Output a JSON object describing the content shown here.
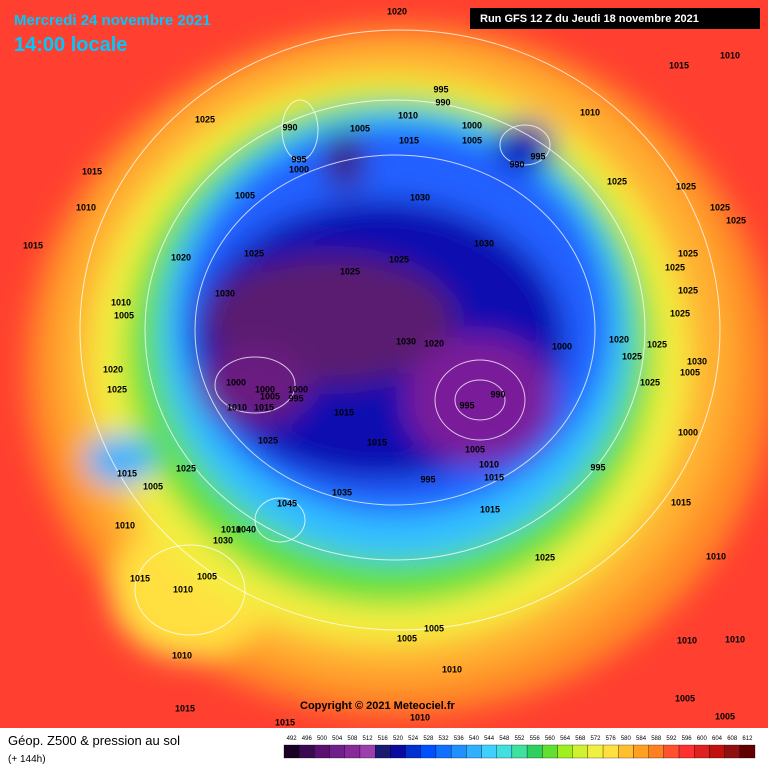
{
  "header": {
    "date": "Mercredi 24 novembre 2021",
    "time": "14:00 locale",
    "run": "Run GFS 12 Z du Jeudi 18 novembre 2021"
  },
  "copyright": "Copyright © 2021 Meteociel.fr",
  "footer": {
    "title": "Géop. Z500 & pression au sol",
    "lead": "(+ 144h)"
  },
  "scale": {
    "values": [
      492,
      496,
      500,
      504,
      508,
      512,
      516,
      520,
      524,
      528,
      532,
      536,
      540,
      544,
      548,
      552,
      556,
      560,
      564,
      568,
      572,
      576,
      580,
      584,
      588,
      592,
      596,
      600,
      604,
      608,
      612
    ],
    "colors": [
      "#1a0025",
      "#3a0a50",
      "#5a1070",
      "#70208a",
      "#8a2a9a",
      "#9b3fae",
      "#1a1a70",
      "#0a0aa0",
      "#0030d0",
      "#0050ff",
      "#1070ff",
      "#2090ff",
      "#30b0ff",
      "#40d0ff",
      "#40e0e0",
      "#40e0a0",
      "#30d060",
      "#60e030",
      "#a0f020",
      "#d0f030",
      "#f0f040",
      "#ffe040",
      "#ffc030",
      "#ffa020",
      "#ff8020",
      "#ff5030",
      "#ff3030",
      "#e02020",
      "#c01010",
      "#901010",
      "#600000"
    ]
  },
  "isobars": [
    1020,
    1015,
    1010,
    1025,
    995,
    990,
    1010,
    1000,
    990,
    1005,
    1010,
    995,
    990,
    1015,
    1005,
    995,
    1000,
    1015,
    1010,
    1005,
    1030,
    1025,
    1025,
    1025,
    1025,
    1015,
    1020,
    1025,
    1030,
    1025,
    1025,
    1025,
    1025,
    1025,
    1030,
    1010,
    1005,
    1025,
    1030,
    1020,
    1000,
    1020,
    1025,
    1025,
    1020,
    1025,
    1000,
    1000,
    1000,
    1005,
    995,
    1015,
    1010,
    990,
    995,
    1025,
    1005,
    1030,
    1015,
    1015,
    1025,
    1000,
    1005,
    1010,
    1015,
    995,
    1015,
    1025,
    1005,
    995,
    1035,
    1045,
    1015,
    1010,
    1010,
    1040,
    1030,
    1015,
    1005,
    1015,
    1010,
    1010,
    1025,
    1005,
    1005,
    1010,
    1010,
    1010,
    1010,
    1005,
    1015,
    1010,
    1015,
    1005
  ]
}
